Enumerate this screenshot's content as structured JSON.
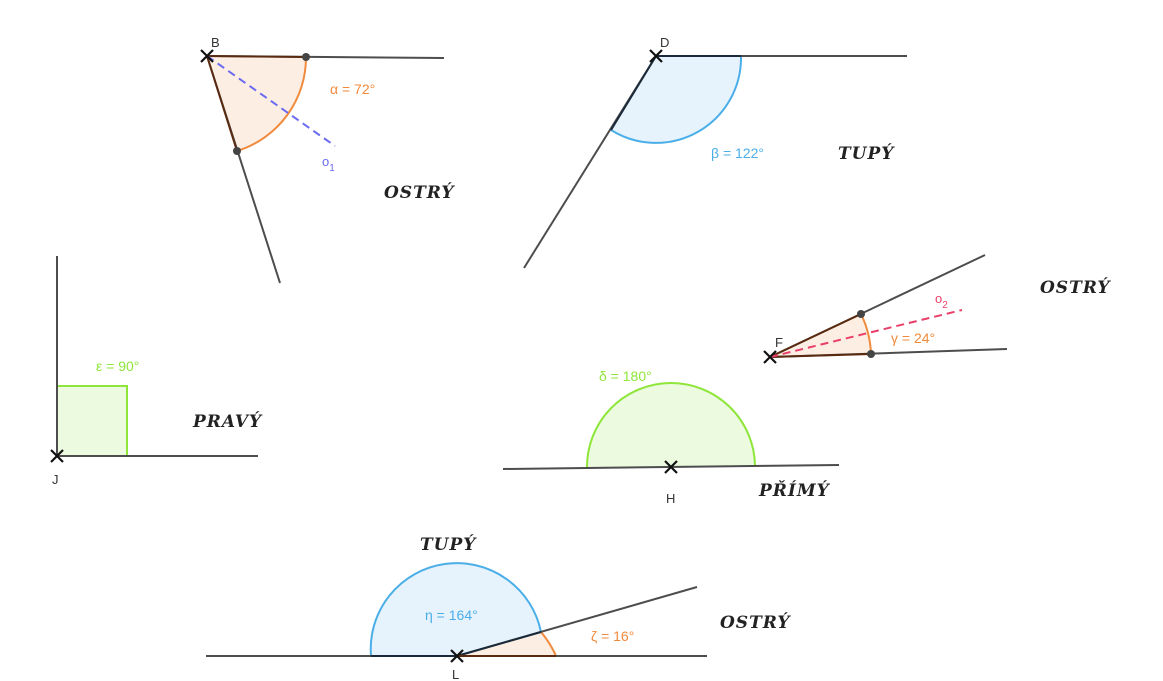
{
  "colors": {
    "line": "#4d4d4d",
    "orange": "#f08a3c",
    "orange_fill": "rgba(246,160,100,0.18)",
    "blue": "#4aaee8",
    "blue_fill": "rgba(120,190,240,0.18)",
    "green": "#8ee63a",
    "green_fill": "rgba(160,230,100,0.2)",
    "bisector1": "#6a6af0",
    "bisector2": "#e8406a",
    "edge_dark": "#5a2a10"
  },
  "points": {
    "B": "B",
    "D": "D",
    "F": "F",
    "J": "J",
    "H": "H",
    "L": "L"
  },
  "angles": {
    "alpha": "α = 72°",
    "beta": "β = 122°",
    "gamma": "γ = 24°",
    "delta": "δ = 180°",
    "epsilon": "ε = 90°",
    "eta": "η = 164°",
    "zeta": "ζ = 16°"
  },
  "bisectors": {
    "o1_base": "o",
    "o1_sub": "1",
    "o2_base": "o",
    "o2_sub": "2"
  },
  "types": {
    "ostry_1": "OSTRÝ",
    "tupy_1": "TUPÝ",
    "ostry_2": "OSTRÝ",
    "pravy": "PRAVÝ",
    "primy": "PŘÍMÝ",
    "tupy_2": "TUPÝ",
    "ostry_3": "OSTRÝ"
  }
}
